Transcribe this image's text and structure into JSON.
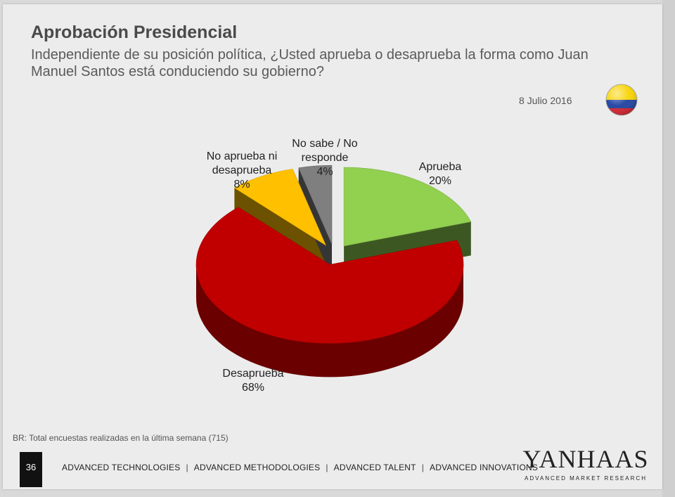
{
  "slide": {
    "title": "Aprobación Presidencial",
    "subtitle": "Independiente de su posición política, ¿Usted aprueba o desaprueba la forma como Juan Manuel Santos está conduciendo su gobierno?",
    "date": "8 Julio 2016",
    "flag_icon": "colombia-flag-icon"
  },
  "chart_data": {
    "type": "pie",
    "title": "Aprobación Presidencial",
    "style": "3d-exploded",
    "slices": [
      {
        "label_lines": [
          "Aprueba"
        ],
        "value": 20,
        "value_label": "20%",
        "color": "#92d050"
      },
      {
        "label_lines": [
          "Desaprueba"
        ],
        "value": 68,
        "value_label": "68%",
        "color": "#c00000"
      },
      {
        "label_lines": [
          "No aprueba ni",
          "desaprueba"
        ],
        "value": 8,
        "value_label": "8%",
        "color": "#ffc000"
      },
      {
        "label_lines": [
          "No sabe / No",
          "responde"
        ],
        "value": 4,
        "value_label": "4%",
        "color": "#7f7f7f"
      }
    ]
  },
  "footer": {
    "note": "BR: Total encuestas realizadas en la última semana (715)",
    "page_number": "36",
    "nav": [
      "ADVANCED TECHNOLOGIES",
      "ADVANCED METHODOLOGIES",
      "ADVANCED TALENT",
      "ADVANCED INNOVATIONS"
    ],
    "separator": "|",
    "brand_name": "YANHAAS",
    "brand_tagline": "ADVANCED MARKET RESEARCH"
  }
}
